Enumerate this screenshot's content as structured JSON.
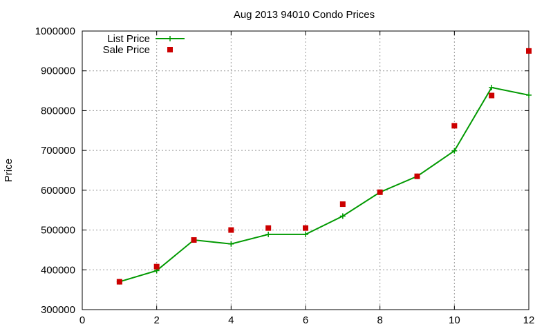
{
  "chart_data": {
    "type": "line",
    "title": "Aug 2013 94010 Condo Prices",
    "xlabel": "",
    "ylabel": "Price",
    "xlim": [
      0,
      12
    ],
    "ylim": [
      300000,
      1000000
    ],
    "xticks": [
      0,
      2,
      4,
      6,
      8,
      10,
      12
    ],
    "yticks": [
      300000,
      400000,
      500000,
      600000,
      700000,
      800000,
      900000,
      1000000
    ],
    "grid": true,
    "legend_position": "top-left",
    "series": [
      {
        "name": "List Price",
        "style": "line+cross",
        "color": "#009900",
        "x": [
          1,
          2,
          3,
          4,
          5,
          6,
          7,
          8,
          9,
          10,
          11,
          12
        ],
        "values": [
          370000,
          398000,
          475000,
          465000,
          489000,
          489000,
          535000,
          595000,
          635000,
          699000,
          858000,
          839000
        ]
      },
      {
        "name": "Sale Price",
        "style": "square",
        "color": "#cc0000",
        "x": [
          1,
          2,
          3,
          4,
          5,
          6,
          7,
          8,
          9,
          10,
          11,
          12
        ],
        "values": [
          370000,
          408000,
          475000,
          500000,
          505000,
          505000,
          565000,
          595000,
          635000,
          762000,
          838000,
          950000
        ]
      }
    ]
  }
}
